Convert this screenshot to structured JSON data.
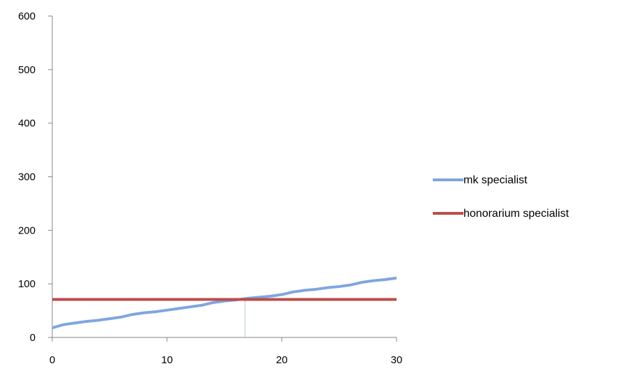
{
  "chart_data": {
    "type": "line",
    "title": "",
    "xlabel": "",
    "ylabel": "",
    "xlim": [
      0,
      30
    ],
    "ylim": [
      0,
      600
    ],
    "x_ticks": [
      0,
      10,
      20,
      30
    ],
    "y_ticks": [
      0,
      100,
      200,
      300,
      400,
      500,
      600
    ],
    "x_tick_labels": [
      "0",
      "10",
      "20",
      "30"
    ],
    "y_tick_labels": [
      "0",
      "100",
      "200",
      "300",
      "400",
      "500",
      "600"
    ],
    "grid": false,
    "legend": "right",
    "series": [
      {
        "name": "mk specialist",
        "color": "#7ea6e0",
        "x": [
          0,
          1,
          2,
          3,
          4,
          5,
          6,
          7,
          8,
          9,
          10,
          11,
          12,
          13,
          14,
          15,
          16,
          17,
          18,
          19,
          20,
          21,
          22,
          23,
          24,
          25,
          26,
          27,
          28,
          29,
          30
        ],
        "y": [
          18,
          24,
          27,
          30,
          32,
          35,
          38,
          43,
          46,
          48,
          51,
          54,
          57,
          60,
          65,
          68,
          70,
          73,
          75,
          77,
          80,
          85,
          88,
          90,
          93,
          95,
          98,
          103,
          106,
          108,
          111
        ]
      },
      {
        "name": "honorarium specialist",
        "color": "#be4b48",
        "x": [
          0,
          30
        ],
        "y": [
          71,
          71
        ]
      }
    ],
    "annotations": [
      {
        "type": "vertical-dotted-line",
        "x": 16.8,
        "y_from": 0,
        "y_to": 71,
        "color": "#6f8fcf"
      }
    ]
  }
}
